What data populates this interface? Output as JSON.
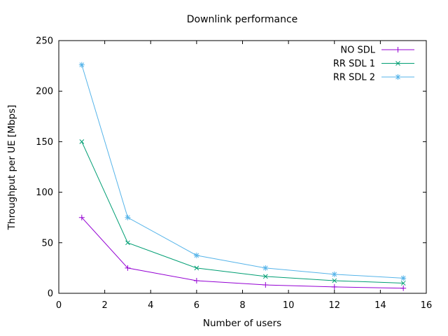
{
  "chart_data": {
    "type": "line",
    "title": "Downlink performance",
    "xlabel": "Number of users",
    "ylabel": "Throughput per UE [Mbps]",
    "x": [
      1,
      3,
      6,
      9,
      12,
      15
    ],
    "series": [
      {
        "name": "NO SDL",
        "color": "#9400d3",
        "marker": "plus",
        "values": [
          75,
          25,
          12.5,
          8.3,
          6.3,
          5
        ]
      },
      {
        "name": "RR SDL 1",
        "color": "#009e73",
        "marker": "cross",
        "values": [
          150,
          50,
          25,
          16.7,
          12.5,
          10
        ]
      },
      {
        "name": "RR SDL 2",
        "color": "#56b4e9",
        "marker": "star",
        "values": [
          226,
          75,
          37.5,
          25,
          18.8,
          15
        ]
      }
    ],
    "xlim": [
      0,
      16
    ],
    "ylim": [
      0,
      250
    ],
    "xticks": [
      0,
      2,
      4,
      6,
      8,
      10,
      12,
      14,
      16
    ],
    "yticks": [
      0,
      50,
      100,
      150,
      200,
      250
    ],
    "legend_position": "top-right",
    "grid": false
  },
  "colors": {
    "background": "#ffffff",
    "frame": "#000000",
    "text": "#000000"
  }
}
